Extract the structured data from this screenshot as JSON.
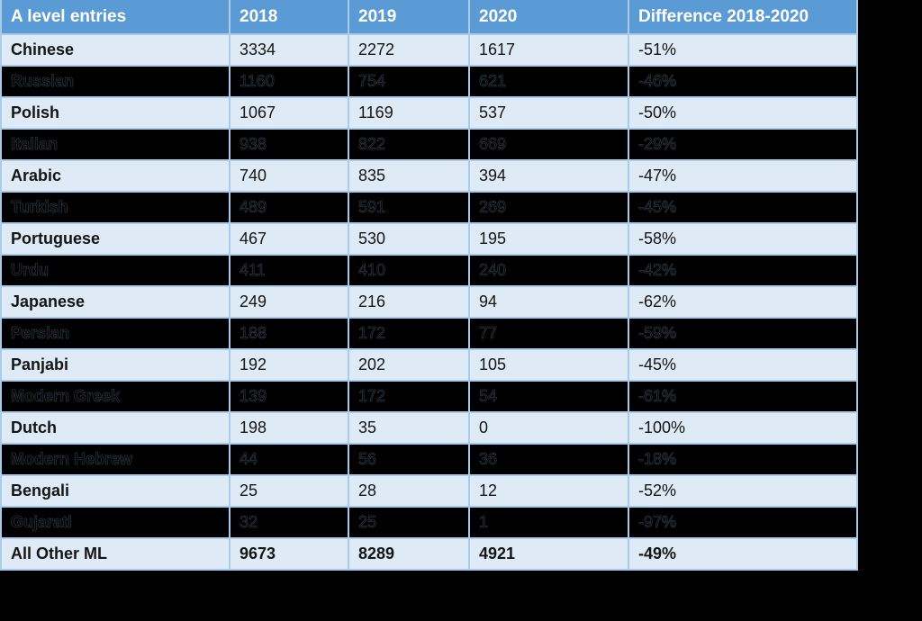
{
  "chart_data": {
    "type": "table",
    "title": "",
    "columns": [
      "A level entries",
      "2018",
      "2019",
      "2020",
      "Difference 2018-2020"
    ],
    "rows": [
      {
        "language": "Chinese",
        "y2018": 3334,
        "y2019": 2272,
        "y2020": 1617,
        "diff": "-51%",
        "blackout": false
      },
      {
        "language": "Russian",
        "y2018": 1160,
        "y2019": 754,
        "y2020": 621,
        "diff": "-46%",
        "blackout": true
      },
      {
        "language": "Polish",
        "y2018": 1067,
        "y2019": 1169,
        "y2020": 537,
        "diff": "-50%",
        "blackout": false
      },
      {
        "language": "Italian",
        "y2018": 938,
        "y2019": 822,
        "y2020": 669,
        "diff": "-29%",
        "blackout": true
      },
      {
        "language": "Arabic",
        "y2018": 740,
        "y2019": 835,
        "y2020": 394,
        "diff": "-47%",
        "blackout": false
      },
      {
        "language": "Turkish",
        "y2018": 489,
        "y2019": 591,
        "y2020": 269,
        "diff": "-45%",
        "blackout": true
      },
      {
        "language": "Portuguese",
        "y2018": 467,
        "y2019": 530,
        "y2020": 195,
        "diff": "-58%",
        "blackout": false
      },
      {
        "language": "Urdu",
        "y2018": 411,
        "y2019": 410,
        "y2020": 240,
        "diff": "-42%",
        "blackout": true
      },
      {
        "language": "Japanese",
        "y2018": 249,
        "y2019": 216,
        "y2020": 94,
        "diff": "-62%",
        "blackout": false
      },
      {
        "language": "Persian",
        "y2018": 188,
        "y2019": 172,
        "y2020": 77,
        "diff": "-59%",
        "blackout": true
      },
      {
        "language": "Panjabi",
        "y2018": 192,
        "y2019": 202,
        "y2020": 105,
        "diff": "-45%",
        "blackout": false
      },
      {
        "language": "Modern Greek",
        "y2018": 139,
        "y2019": 172,
        "y2020": 54,
        "diff": "-61%",
        "blackout": true
      },
      {
        "language": "Dutch",
        "y2018": 198,
        "y2019": 35,
        "y2020": 0,
        "diff": "-100%",
        "blackout": false
      },
      {
        "language": "Modern Hebrew",
        "y2018": 44,
        "y2019": 56,
        "y2020": 36,
        "diff": "-18%",
        "blackout": true
      },
      {
        "language": "Bengali",
        "y2018": 25,
        "y2019": 28,
        "y2020": 12,
        "diff": "-52%",
        "blackout": false
      },
      {
        "language": "Gujarati",
        "y2018": 32,
        "y2019": 25,
        "y2020": 1,
        "diff": "-97%",
        "blackout": true
      },
      {
        "language": "All Other ML",
        "y2018": 9673,
        "y2019": 8289,
        "y2020": 4921,
        "diff": "-49%",
        "blackout": false,
        "total": true
      }
    ],
    "layout": {
      "grid": true,
      "banded_rows": true,
      "header_position": "top"
    }
  },
  "colors": {
    "header_bg": "#5B9BD5",
    "header_text": "#FFFFFF",
    "row_light_bg": "#DEEAF6",
    "row_blackout_bg": "#000000",
    "grid_border": "#A9CBEA",
    "canvas_bg": "#000000"
  }
}
